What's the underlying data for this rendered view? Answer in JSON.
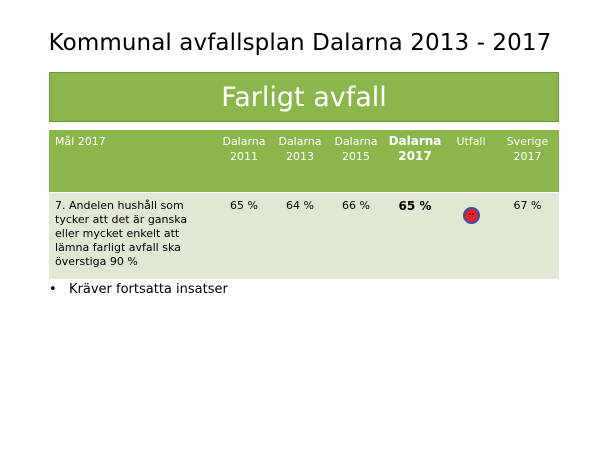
{
  "slide": {
    "title": "Kommunal avfallsplan Dalarna 2013 - 2017",
    "banner": "Farligt avfall"
  },
  "table": {
    "headers": [
      "Mål 2017",
      "Dalarna 2011",
      "Dalarna 2013",
      "Dalarna 2015",
      "Dalarna 2017",
      "Utfall",
      "Sverige 2017"
    ],
    "row": {
      "goal": "7. Andelen hushåll som tycker att det är ganska eller mycket enkelt att lämna farligt avfall ska överstiga 90 %",
      "d2011": "65 %",
      "d2013": "64 %",
      "d2015": "66 %",
      "d2017": "65 %",
      "outcome_icon": "sad-face-icon",
      "sverige2017": "67 %"
    }
  },
  "bullets": [
    "Kräver fortsatta insatser"
  ],
  "colors": {
    "banner_green": "#8ab64c",
    "row_background": "#dfe8d3",
    "outcome_red": "#e0222b"
  }
}
